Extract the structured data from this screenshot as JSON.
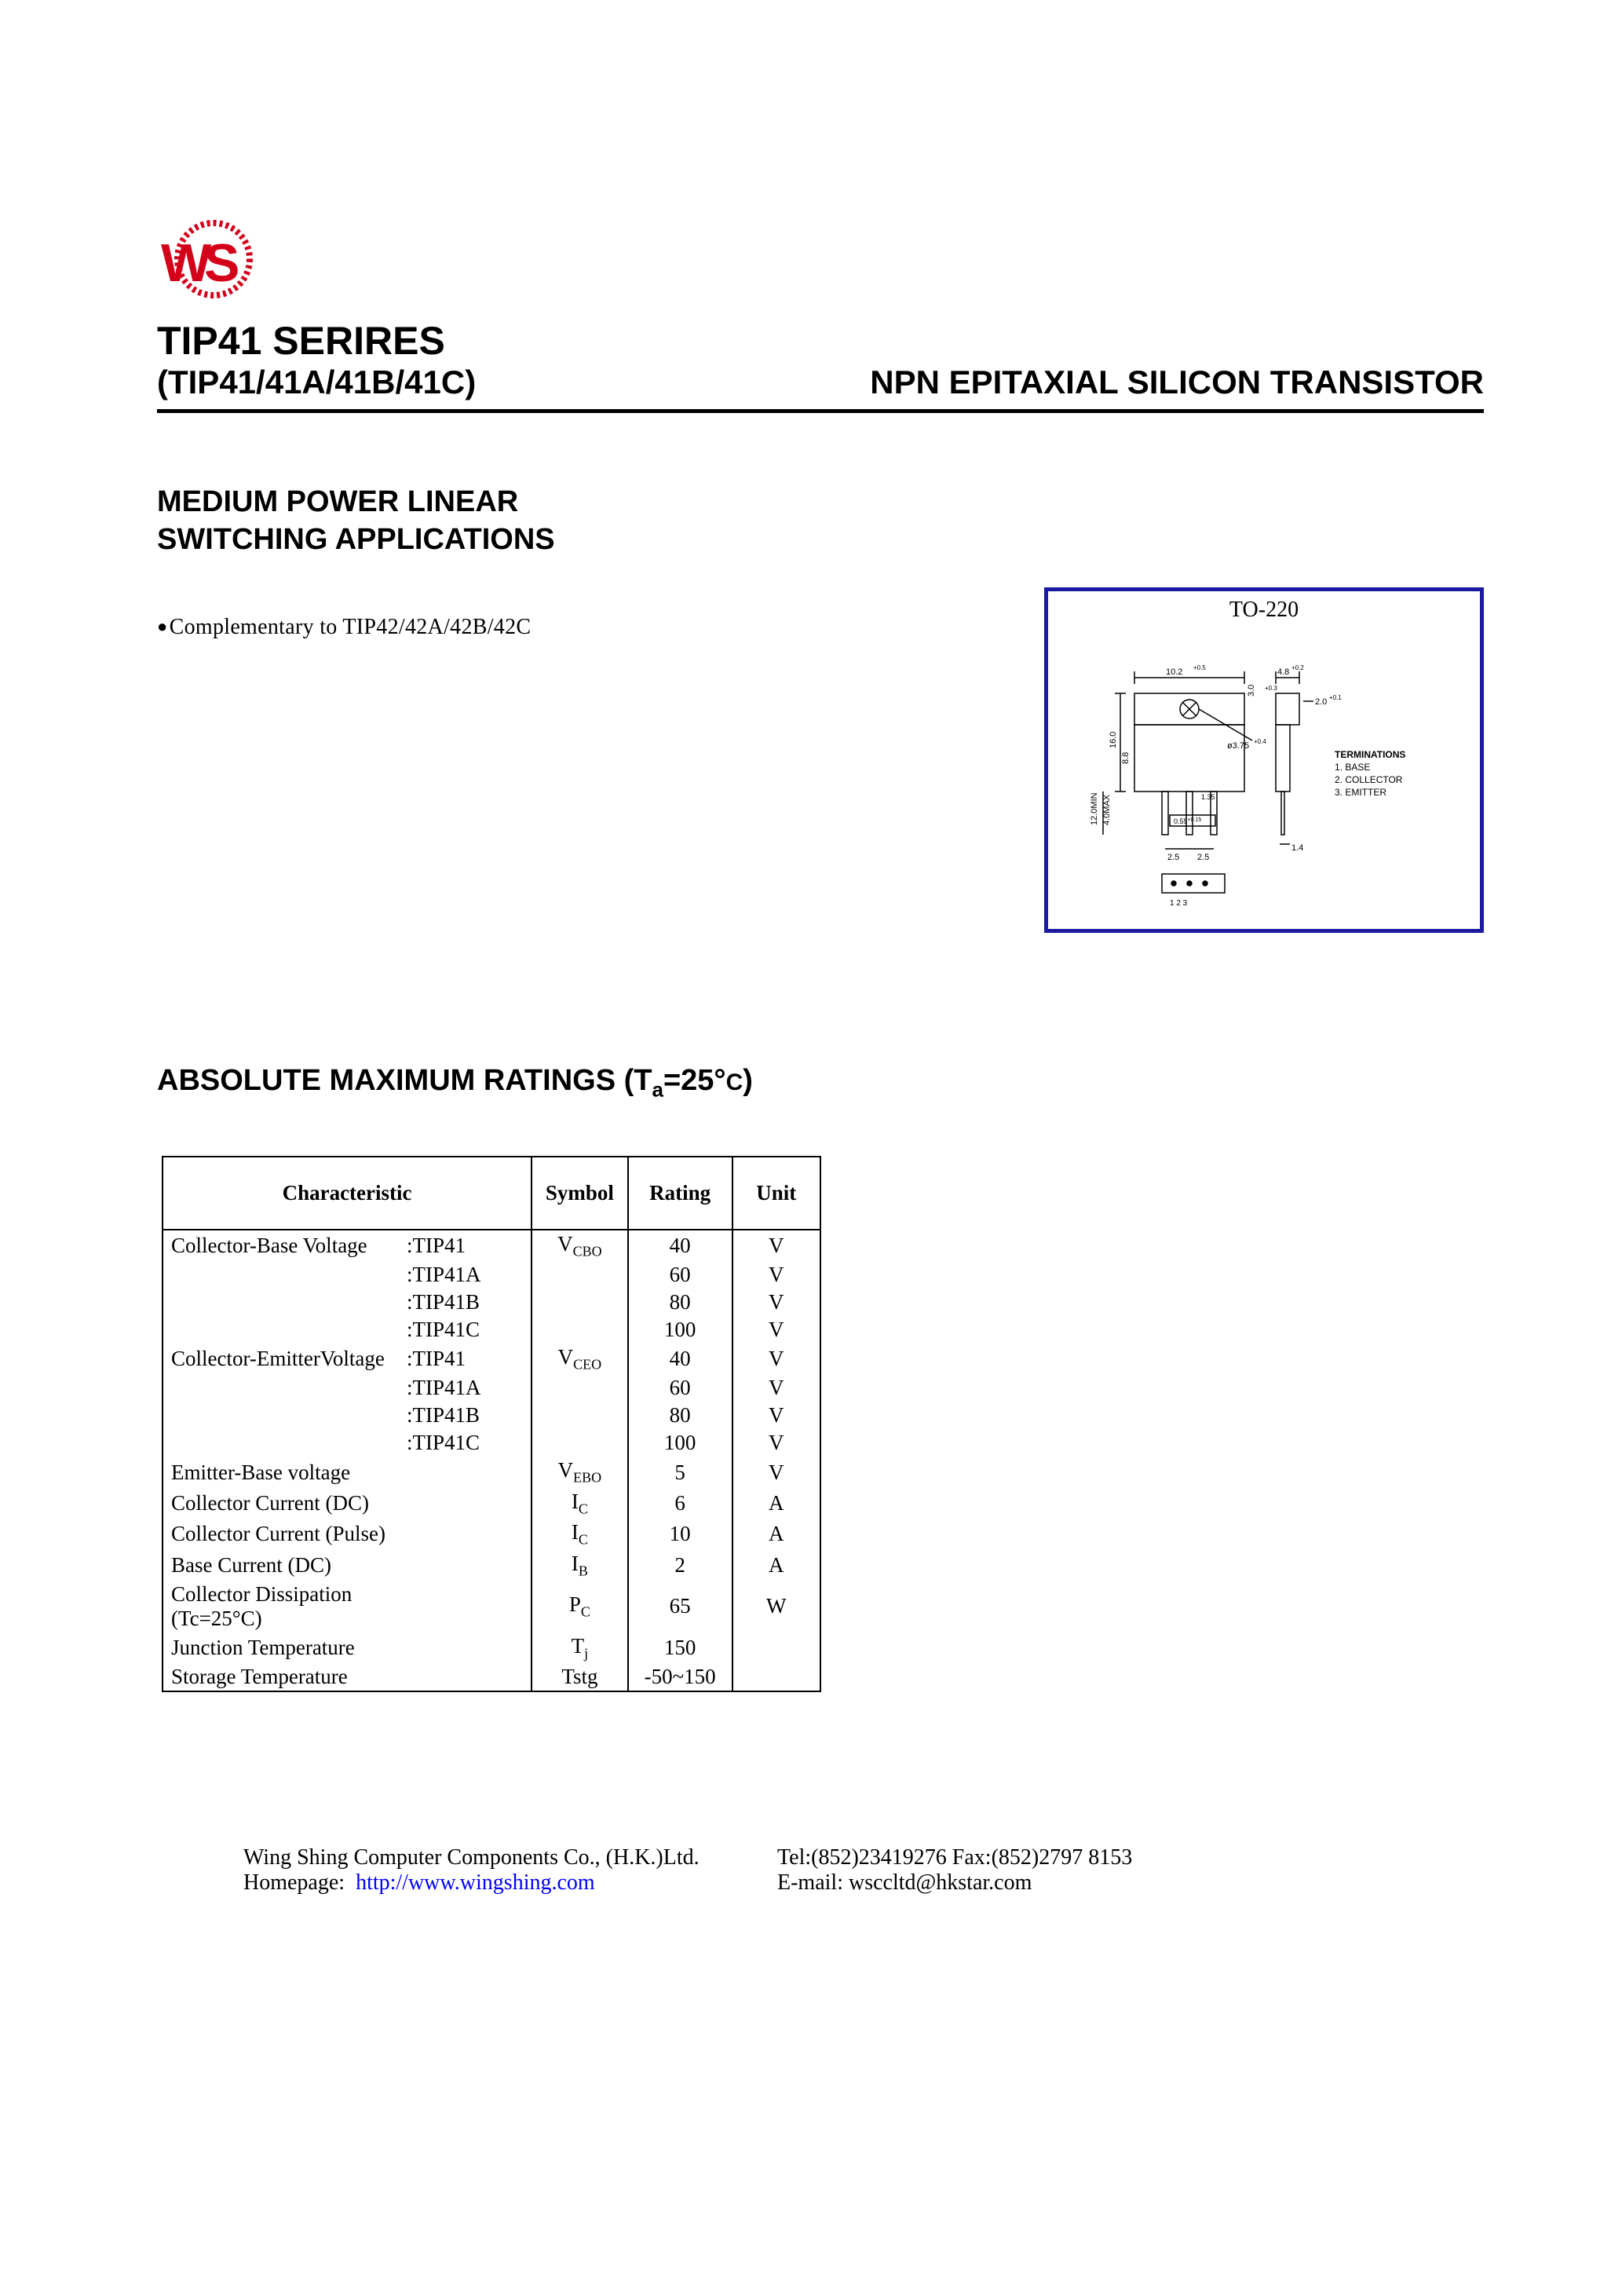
{
  "header": {
    "series_title": "TIP41 SERIRES",
    "part_list": "(TIP41/41A/41B/41C)",
    "product_type": "NPN    EPITAXIAL SILICON TRANSISTOR"
  },
  "applications": {
    "heading_line1": "MEDIUM POWER LINEAR",
    "heading_line2": "SWITCHING APPLICATIONS",
    "bullet1": "Complementary to TIP42/42A/42B/42C"
  },
  "diagram": {
    "package_label": "TO-220",
    "terminations_title": "TERMINATIONS",
    "term1": "1. BASE",
    "term2": "2. COLLECTOR",
    "term3": "3. EMITTER",
    "dim_top_w": "10.2",
    "dim_top_w_tol": "+0.5",
    "dim_tab_w": "4.8",
    "dim_tab_w_tol": "+0.2",
    "dim_tab_t": "2.0",
    "dim_tab_t_tol": "+0.1",
    "dim_overhang": "3.0",
    "dim_overhang_tol": "+0.3",
    "dim_body_h": "16.0",
    "dim_body_h_tol": "+0.3",
    "dim_body_h2": "8.8",
    "dim_lead_spread": "12.0MIN",
    "dim_lead_spread2": "4.0MAX",
    "dim_hole": "ø3.75",
    "dim_hole_tol": "+0.4",
    "dim_lead_t": "1.35",
    "dim_lead_w": "0.55",
    "dim_lead_w_tol": "+0.15",
    "dim_pitch_l": "2.5",
    "dim_pitch_r": "2.5",
    "dim_lead_tab": "1.4",
    "pins": "1  2  3"
  },
  "ratings": {
    "heading_prefix": "ABSOLUTE MAXIMUM RATINGS (T",
    "heading_sub": "a",
    "heading_rest": "=25°",
    "heading_c": "C",
    "heading_close": ")",
    "columns": {
      "characteristic": "Characteristic",
      "symbol": "Symbol",
      "rating": "Rating",
      "unit": "Unit"
    },
    "rows": [
      {
        "char_name": "Collector-Base Voltage",
        "char_part": ":TIP41",
        "symbol": "V",
        "symbol_sub": "CBO",
        "rating": "40",
        "unit": "V"
      },
      {
        "char_name": "",
        "char_part": ":TIP41A",
        "symbol": "",
        "symbol_sub": "",
        "rating": "60",
        "unit": "V"
      },
      {
        "char_name": "",
        "char_part": ":TIP41B",
        "symbol": "",
        "symbol_sub": "",
        "rating": "80",
        "unit": "V"
      },
      {
        "char_name": "",
        "char_part": ":TIP41C",
        "symbol": "",
        "symbol_sub": "",
        "rating": "100",
        "unit": "V"
      },
      {
        "char_name": "Collector-EmitterVoltage",
        "char_part": ":TIP41",
        "symbol": "V",
        "symbol_sub": "CEO",
        "rating": "40",
        "unit": "V"
      },
      {
        "char_name": "",
        "char_part": ":TIP41A",
        "symbol": "",
        "symbol_sub": "",
        "rating": "60",
        "unit": "V"
      },
      {
        "char_name": "",
        "char_part": ":TIP41B",
        "symbol": "",
        "symbol_sub": "",
        "rating": "80",
        "unit": "V"
      },
      {
        "char_name": "",
        "char_part": ":TIP41C",
        "symbol": "",
        "symbol_sub": "",
        "rating": "100",
        "unit": "V"
      },
      {
        "char_name": "Emitter-Base voltage",
        "char_part": "",
        "symbol": "V",
        "symbol_sub": "EBO",
        "rating": "5",
        "unit": "V"
      },
      {
        "char_name": "Collector Current (DC)",
        "char_part": "",
        "symbol": "I",
        "symbol_sub": "C",
        "rating": "6",
        "unit": "A"
      },
      {
        "char_name": "Collector Current (Pulse)",
        "char_part": "",
        "symbol": "I",
        "symbol_sub": "C",
        "rating": "10",
        "unit": "A"
      },
      {
        "char_name": "Base Current (DC)",
        "char_part": "",
        "symbol": "I",
        "symbol_sub": "B",
        "rating": "2",
        "unit": "A"
      },
      {
        "char_name": "Collector Dissipation (Tc=25°C)",
        "char_part": "",
        "symbol": "P",
        "symbol_sub": "C",
        "rating": "65",
        "unit": "W"
      },
      {
        "char_name": "Junction Temperature",
        "char_part": "",
        "symbol": "T",
        "symbol_sub": "j",
        "rating": "150",
        "unit": ""
      },
      {
        "char_name": "Storage Temperature",
        "char_part": "",
        "symbol": "Tstg",
        "symbol_sub": "",
        "rating": "-50~150",
        "unit": ""
      }
    ]
  },
  "footer": {
    "company": "Wing Shing Computer Components Co., (H.K.)Ltd.",
    "homepage_label": "Homepage:",
    "homepage_url": "http://www.wingshing.com",
    "tel_label": "Tel:(852)23419276   Fax:(852)2797 8153",
    "email_label": "E-mail:   wsccltd@hkstar.com"
  },
  "colors": {
    "logo_red": "#d4001a",
    "diagram_border": "#1a1aa0",
    "link_blue": "#0000ff"
  }
}
